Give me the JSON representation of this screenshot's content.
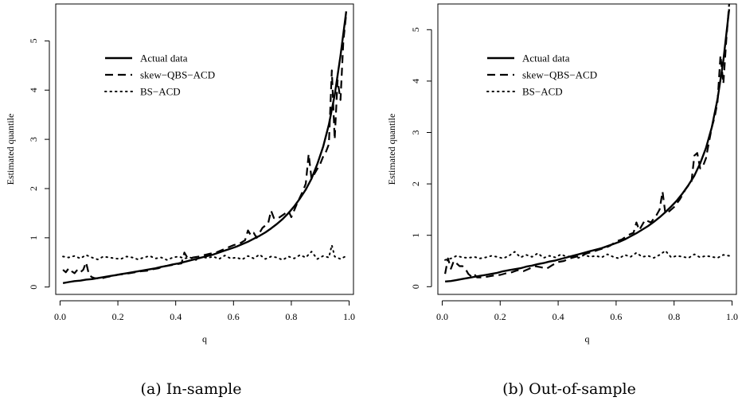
{
  "legend": {
    "actual": "Actual data",
    "skew": "skew−QBS−ACD",
    "bs": "BS−ACD"
  },
  "styles": {
    "line_color": "#000000",
    "actual": "solid",
    "skew": "dashed",
    "bs": "dotted"
  },
  "chart_data": [
    {
      "type": "line",
      "caption": "(a) In-sample",
      "xlabel": "q",
      "ylabel": "Estimated quantile",
      "xlim": [
        -0.015,
        1.015
      ],
      "ylim": [
        -0.15,
        5.75
      ],
      "xticks": [
        "0.0",
        "0.2",
        "0.4",
        "0.6",
        "0.8",
        "1.0"
      ],
      "yticks": [
        "0",
        "1",
        "2",
        "3",
        "4",
        "5"
      ],
      "legend_position": "top-left",
      "series": [
        {
          "name": "Actual data",
          "style": "solid",
          "x": [
            0.01,
            0.03,
            0.05,
            0.07,
            0.09,
            0.11,
            0.13,
            0.15,
            0.17,
            0.19,
            0.21,
            0.23,
            0.25,
            0.27,
            0.29,
            0.31,
            0.33,
            0.35,
            0.37,
            0.39,
            0.41,
            0.43,
            0.45,
            0.47,
            0.49,
            0.51,
            0.53,
            0.55,
            0.57,
            0.59,
            0.61,
            0.63,
            0.65,
            0.67,
            0.69,
            0.71,
            0.73,
            0.75,
            0.77,
            0.79,
            0.81,
            0.83,
            0.85,
            0.87,
            0.89,
            0.91,
            0.93,
            0.95,
            0.97,
            0.99
          ],
          "y": [
            0.08,
            0.1,
            0.12,
            0.13,
            0.15,
            0.16,
            0.18,
            0.2,
            0.22,
            0.24,
            0.26,
            0.28,
            0.3,
            0.32,
            0.34,
            0.36,
            0.38,
            0.41,
            0.43,
            0.46,
            0.48,
            0.51,
            0.54,
            0.57,
            0.6,
            0.63,
            0.66,
            0.7,
            0.74,
            0.78,
            0.82,
            0.87,
            0.92,
            0.98,
            1.04,
            1.11,
            1.19,
            1.28,
            1.38,
            1.5,
            1.64,
            1.8,
            1.98,
            2.2,
            2.5,
            2.85,
            3.3,
            3.9,
            4.7,
            5.6
          ]
        },
        {
          "name": "skew−QBS−ACD",
          "style": "dashed",
          "x": [
            0.01,
            0.02,
            0.03,
            0.04,
            0.05,
            0.06,
            0.07,
            0.08,
            0.09,
            0.1,
            0.11,
            0.12,
            0.14,
            0.16,
            0.18,
            0.2,
            0.22,
            0.24,
            0.26,
            0.28,
            0.3,
            0.32,
            0.34,
            0.36,
            0.38,
            0.4,
            0.42,
            0.43,
            0.44,
            0.45,
            0.46,
            0.48,
            0.5,
            0.52,
            0.54,
            0.56,
            0.58,
            0.6,
            0.62,
            0.64,
            0.65,
            0.66,
            0.67,
            0.68,
            0.7,
            0.72,
            0.73,
            0.74,
            0.75,
            0.76,
            0.78,
            0.79,
            0.8,
            0.82,
            0.84,
            0.85,
            0.86,
            0.87,
            0.88,
            0.89,
            0.9,
            0.91,
            0.92,
            0.93,
            0.94,
            0.95,
            0.96,
            0.97,
            0.98,
            0.99
          ],
          "y": [
            0.35,
            0.3,
            0.38,
            0.32,
            0.28,
            0.35,
            0.3,
            0.35,
            0.5,
            0.25,
            0.2,
            0.18,
            0.17,
            0.2,
            0.22,
            0.25,
            0.26,
            0.28,
            0.3,
            0.32,
            0.33,
            0.36,
            0.38,
            0.42,
            0.44,
            0.46,
            0.48,
            0.7,
            0.6,
            0.58,
            0.6,
            0.62,
            0.65,
            0.68,
            0.7,
            0.75,
            0.8,
            0.85,
            0.88,
            0.95,
            1.15,
            1.05,
            1.1,
            1.0,
            1.2,
            1.3,
            1.55,
            1.4,
            1.38,
            1.42,
            1.5,
            1.55,
            1.42,
            1.7,
            1.95,
            2.1,
            2.7,
            2.2,
            2.3,
            2.4,
            2.5,
            2.65,
            2.75,
            2.9,
            4.4,
            3.0,
            4.2,
            3.8,
            5.0,
            5.55
          ]
        },
        {
          "name": "BS−ACD",
          "style": "dotted",
          "x": [
            0.01,
            0.03,
            0.05,
            0.07,
            0.09,
            0.11,
            0.13,
            0.15,
            0.17,
            0.19,
            0.21,
            0.23,
            0.25,
            0.27,
            0.29,
            0.31,
            0.33,
            0.35,
            0.37,
            0.39,
            0.41,
            0.43,
            0.45,
            0.47,
            0.49,
            0.51,
            0.53,
            0.55,
            0.57,
            0.59,
            0.61,
            0.63,
            0.65,
            0.67,
            0.69,
            0.71,
            0.73,
            0.75,
            0.77,
            0.79,
            0.81,
            0.83,
            0.85,
            0.87,
            0.89,
            0.91,
            0.93,
            0.94,
            0.95,
            0.97,
            0.99
          ],
          "y": [
            0.62,
            0.6,
            0.63,
            0.58,
            0.65,
            0.6,
            0.56,
            0.62,
            0.6,
            0.58,
            0.57,
            0.62,
            0.6,
            0.56,
            0.6,
            0.63,
            0.58,
            0.6,
            0.55,
            0.6,
            0.62,
            0.58,
            0.6,
            0.55,
            0.61,
            0.59,
            0.62,
            0.57,
            0.64,
            0.58,
            0.6,
            0.56,
            0.63,
            0.58,
            0.66,
            0.57,
            0.62,
            0.6,
            0.55,
            0.62,
            0.58,
            0.65,
            0.6,
            0.72,
            0.57,
            0.63,
            0.6,
            0.85,
            0.62,
            0.57,
            0.63
          ]
        }
      ]
    },
    {
      "type": "line",
      "caption": "(b) Out-of-sample",
      "xlabel": "q",
      "ylabel": "Estimated quantile",
      "xlim": [
        -0.015,
        1.015
      ],
      "ylim": [
        -0.15,
        5.5
      ],
      "xticks": [
        "0.0",
        "0.2",
        "0.4",
        "0.6",
        "0.8",
        "1.0"
      ],
      "yticks": [
        "0",
        "1",
        "2",
        "3",
        "4",
        "5"
      ],
      "legend_position": "top-left",
      "series": [
        {
          "name": "Actual data",
          "style": "solid",
          "x": [
            0.01,
            0.03,
            0.05,
            0.07,
            0.09,
            0.11,
            0.13,
            0.15,
            0.17,
            0.19,
            0.21,
            0.23,
            0.25,
            0.27,
            0.29,
            0.31,
            0.33,
            0.35,
            0.37,
            0.39,
            0.41,
            0.43,
            0.45,
            0.47,
            0.49,
            0.51,
            0.53,
            0.55,
            0.57,
            0.59,
            0.61,
            0.63,
            0.65,
            0.67,
            0.69,
            0.71,
            0.73,
            0.75,
            0.77,
            0.79,
            0.81,
            0.83,
            0.85,
            0.87,
            0.89,
            0.91,
            0.93,
            0.95,
            0.97,
            0.99
          ],
          "y": [
            0.1,
            0.11,
            0.13,
            0.15,
            0.17,
            0.19,
            0.21,
            0.23,
            0.25,
            0.27,
            0.3,
            0.32,
            0.34,
            0.36,
            0.39,
            0.41,
            0.44,
            0.46,
            0.49,
            0.51,
            0.54,
            0.57,
            0.6,
            0.63,
            0.66,
            0.69,
            0.72,
            0.75,
            0.79,
            0.83,
            0.87,
            0.92,
            0.98,
            1.04,
            1.11,
            1.18,
            1.26,
            1.35,
            1.45,
            1.56,
            1.68,
            1.82,
            1.98,
            2.16,
            2.4,
            2.7,
            3.1,
            3.65,
            4.4,
            5.4
          ]
        },
        {
          "name": "skew−QBS−ACD",
          "style": "dashed",
          "x": [
            0.01,
            0.02,
            0.03,
            0.04,
            0.05,
            0.06,
            0.07,
            0.08,
            0.09,
            0.1,
            0.11,
            0.12,
            0.14,
            0.16,
            0.18,
            0.2,
            0.22,
            0.24,
            0.26,
            0.28,
            0.3,
            0.32,
            0.34,
            0.36,
            0.38,
            0.4,
            0.42,
            0.44,
            0.46,
            0.48,
            0.5,
            0.52,
            0.54,
            0.56,
            0.58,
            0.6,
            0.62,
            0.64,
            0.66,
            0.67,
            0.68,
            0.7,
            0.72,
            0.74,
            0.75,
            0.76,
            0.77,
            0.78,
            0.8,
            0.82,
            0.84,
            0.86,
            0.87,
            0.88,
            0.89,
            0.9,
            0.91,
            0.92,
            0.93,
            0.94,
            0.95,
            0.96,
            0.97,
            0.98,
            0.99
          ],
          "y": [
            0.25,
            0.55,
            0.35,
            0.5,
            0.45,
            0.4,
            0.4,
            0.35,
            0.25,
            0.2,
            0.25,
            0.18,
            0.18,
            0.2,
            0.22,
            0.23,
            0.26,
            0.28,
            0.32,
            0.3,
            0.35,
            0.4,
            0.38,
            0.35,
            0.42,
            0.48,
            0.5,
            0.55,
            0.58,
            0.6,
            0.65,
            0.68,
            0.72,
            0.75,
            0.8,
            0.88,
            0.92,
            1.0,
            1.05,
            1.25,
            1.1,
            1.3,
            1.25,
            1.4,
            1.5,
            1.85,
            1.42,
            1.45,
            1.55,
            1.7,
            1.9,
            2.05,
            2.55,
            2.6,
            2.3,
            2.35,
            2.5,
            2.8,
            3.1,
            3.3,
            3.6,
            4.5,
            3.95,
            4.8,
            5.5
          ]
        },
        {
          "name": "BS−ACD",
          "style": "dotted",
          "x": [
            0.01,
            0.03,
            0.05,
            0.07,
            0.09,
            0.11,
            0.13,
            0.15,
            0.17,
            0.19,
            0.21,
            0.23,
            0.25,
            0.27,
            0.29,
            0.31,
            0.33,
            0.35,
            0.37,
            0.39,
            0.41,
            0.43,
            0.45,
            0.47,
            0.49,
            0.51,
            0.53,
            0.55,
            0.57,
            0.59,
            0.61,
            0.63,
            0.65,
            0.67,
            0.69,
            0.71,
            0.73,
            0.75,
            0.77,
            0.79,
            0.81,
            0.83,
            0.85,
            0.87,
            0.89,
            0.91,
            0.93,
            0.95,
            0.97,
            0.99
          ],
          "y": [
            0.52,
            0.55,
            0.6,
            0.57,
            0.56,
            0.58,
            0.55,
            0.57,
            0.6,
            0.58,
            0.55,
            0.6,
            0.68,
            0.57,
            0.62,
            0.58,
            0.65,
            0.56,
            0.6,
            0.57,
            0.63,
            0.58,
            0.6,
            0.56,
            0.62,
            0.58,
            0.6,
            0.57,
            0.63,
            0.58,
            0.55,
            0.62,
            0.58,
            0.66,
            0.58,
            0.6,
            0.56,
            0.62,
            0.7,
            0.57,
            0.6,
            0.58,
            0.56,
            0.63,
            0.57,
            0.6,
            0.58,
            0.56,
            0.62,
            0.6
          ]
        }
      ]
    }
  ]
}
